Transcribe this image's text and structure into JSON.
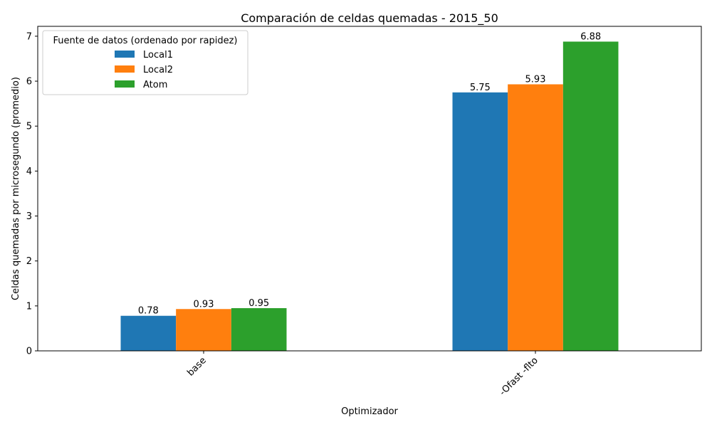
{
  "chart_data": {
    "type": "bar",
    "title": "Comparación de celdas quemadas - 2015_50",
    "xlabel": "Optimizador",
    "ylabel": "Celdas quemadas por microsegundo (promedio)",
    "categories": [
      "base",
      "-Ofast -flto"
    ],
    "series": [
      {
        "name": "Local1",
        "values": [
          0.78,
          5.75
        ],
        "color": "#1f77b4"
      },
      {
        "name": "Local2",
        "values": [
          0.93,
          5.93
        ],
        "color": "#ff7f0e"
      },
      {
        "name": "Atom",
        "values": [
          0.95,
          6.88
        ],
        "color": "#2ca02c"
      }
    ],
    "data_labels": [
      [
        "0.78",
        "5.75"
      ],
      [
        "0.93",
        "5.93"
      ],
      [
        "0.95",
        "6.88"
      ]
    ],
    "ylim": [
      0,
      7.22
    ],
    "yticks": [
      0,
      1,
      2,
      3,
      4,
      5,
      6,
      7
    ],
    "ytick_labels": [
      "0",
      "1",
      "2",
      "3",
      "4",
      "5",
      "6",
      "7"
    ],
    "legend": {
      "title": "Fuente de datos (ordenado por rapidez)",
      "placement": "top-left"
    },
    "grid": false
  }
}
